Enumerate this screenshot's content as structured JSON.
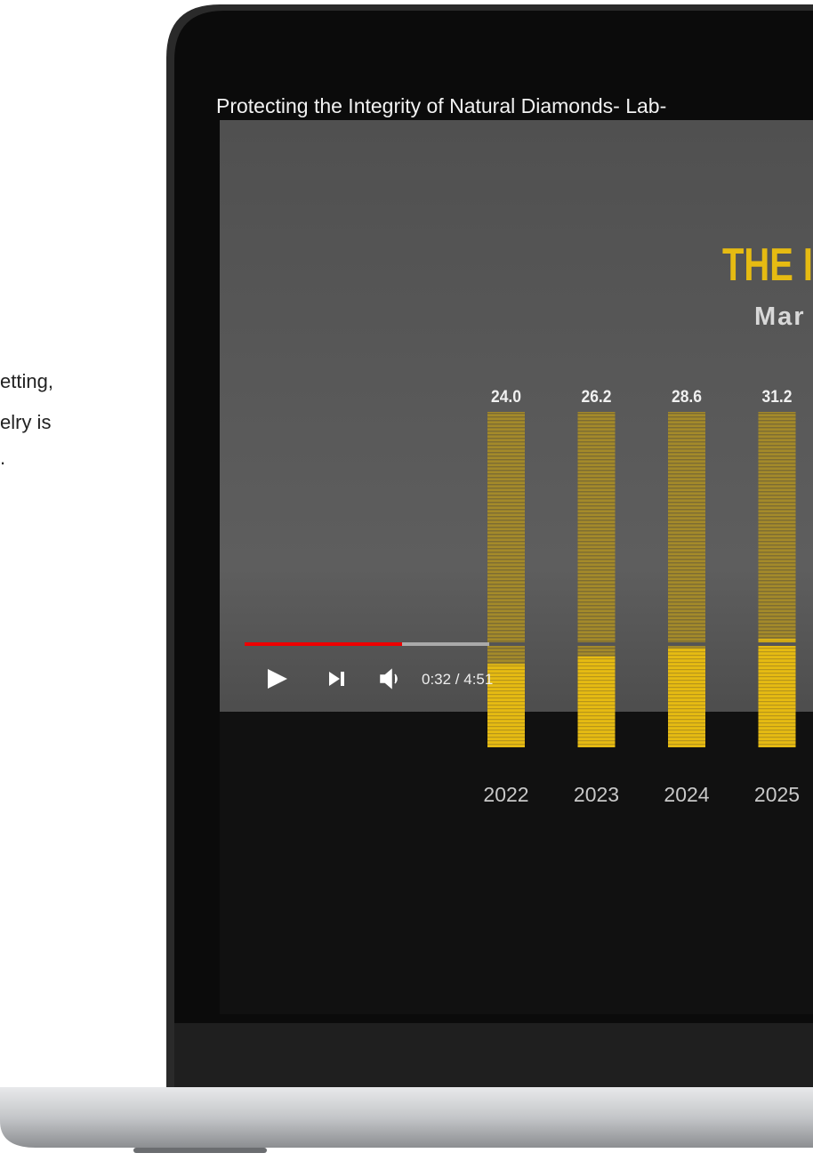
{
  "page_text": [
    "etting,",
    "elry is",
    "."
  ],
  "video": {
    "title": "Protecting the Integrity of Natural Diamonds- Lab-",
    "time": "0:32 / 4:51",
    "chart": {
      "type": "bar",
      "title": "THE I",
      "subtitle": "Mar",
      "categories": [
        "2022",
        "2023",
        "2024",
        "2025"
      ],
      "values": [
        24.0,
        26.2,
        28.6,
        31.2
      ],
      "value_labels": [
        "24.0",
        "26.2",
        "28.6",
        "31.2"
      ],
      "color": "#e6bb12"
    }
  }
}
